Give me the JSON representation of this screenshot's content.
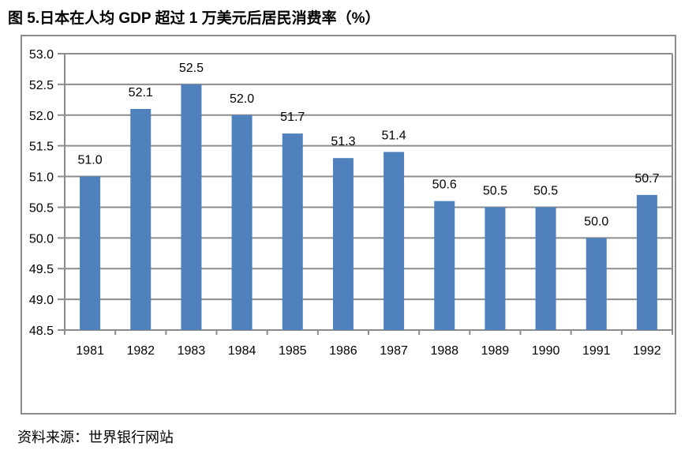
{
  "chart": {
    "title": "图 5.日本在人均 GDP 超过 1 万美元后居民消费率（%）",
    "source": "资料来源：世界银行网站"
  },
  "chart_data": {
    "type": "bar",
    "title": "图 5.日本在人均 GDP 超过 1 万美元后居民消费率（%）",
    "source": "资料来源：世界银行网站",
    "categories": [
      "1981",
      "1982",
      "1983",
      "1984",
      "1985",
      "1986",
      "1987",
      "1988",
      "1989",
      "1990",
      "1991",
      "1992"
    ],
    "values": [
      51.0,
      52.1,
      52.5,
      52.0,
      51.7,
      51.3,
      51.4,
      50.6,
      50.5,
      50.5,
      50.0,
      50.7
    ],
    "data_labels": [
      "51.0",
      "52.1",
      "52.5",
      "52.0",
      "51.7",
      "51.3",
      "51.4",
      "50.6",
      "50.5",
      "50.5",
      "50.0",
      "50.7"
    ],
    "xlabel": "",
    "ylabel": "",
    "ylim": [
      48.5,
      53.0
    ],
    "ytick_step": 0.5,
    "yticks": [
      "48.5",
      "49.0",
      "49.5",
      "50.0",
      "50.5",
      "51.0",
      "51.5",
      "52.0",
      "52.5",
      "53.0"
    ],
    "grid": true,
    "legend": "none",
    "bar_color": "#4F81BD",
    "gridline_color": "#8C8C8C",
    "border_color": "#8C8C8C",
    "text_color": "#000000"
  }
}
